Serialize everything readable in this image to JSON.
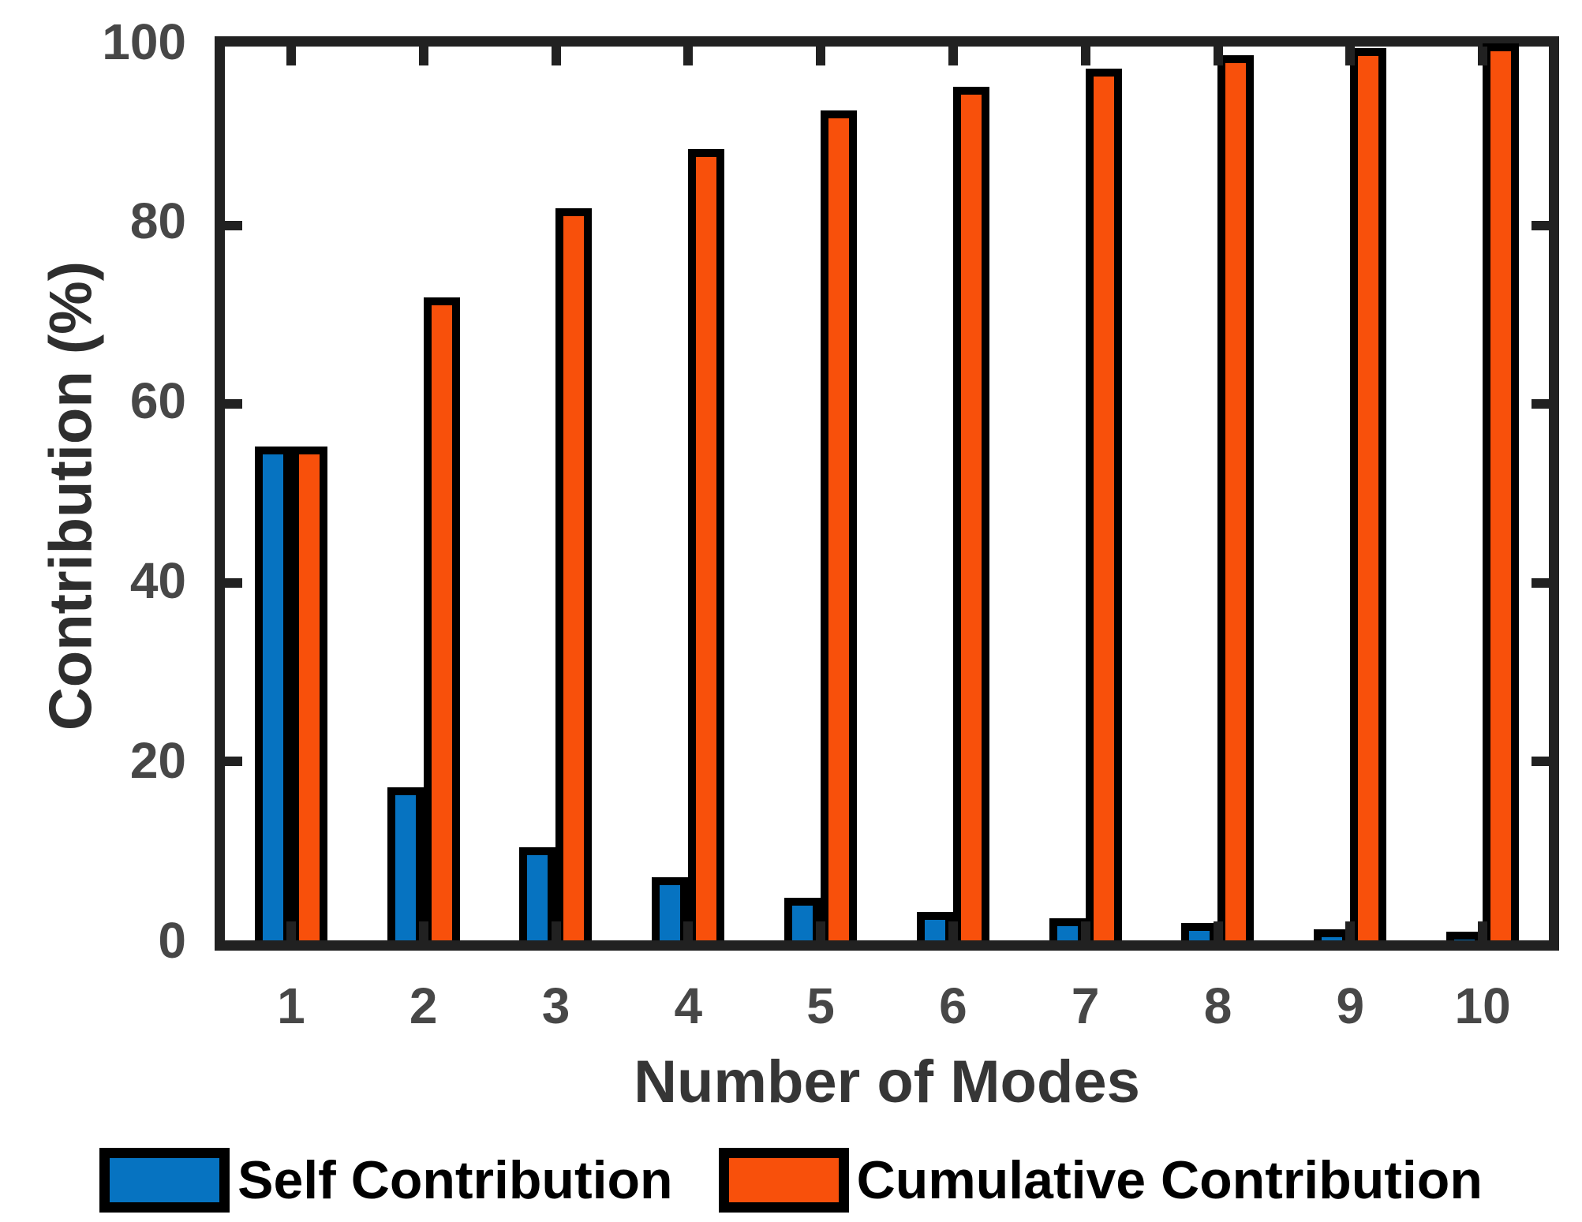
{
  "chart_data": {
    "type": "bar",
    "title": "",
    "xlabel": "Number of Modes",
    "ylabel": "Contribution (%)",
    "categories": [
      "1",
      "2",
      "3",
      "4",
      "5",
      "6",
      "7",
      "8",
      "9",
      "10"
    ],
    "series": [
      {
        "name": "Self Contribution",
        "color": "#0673C1",
        "values": [
          54.8,
          16.7,
          10.0,
          6.6,
          4.3,
          2.7,
          2.0,
          1.5,
          0.8,
          0.5
        ]
      },
      {
        "name": "Cumulative Contribution",
        "color": "#F8500B",
        "values": [
          54.8,
          71.5,
          81.5,
          88.1,
          92.4,
          95.1,
          97.1,
          98.6,
          99.4,
          99.9
        ]
      }
    ],
    "ylim": [
      0,
      100
    ],
    "y_ticks": [
      0,
      20,
      40,
      60,
      80,
      100
    ],
    "grid": "off",
    "legend_position": "below-axis",
    "bar_outline_color": "#000000",
    "axis_frame_color": "#212121",
    "tick_label_color": "#474747",
    "axis_label_color": "#363636"
  }
}
